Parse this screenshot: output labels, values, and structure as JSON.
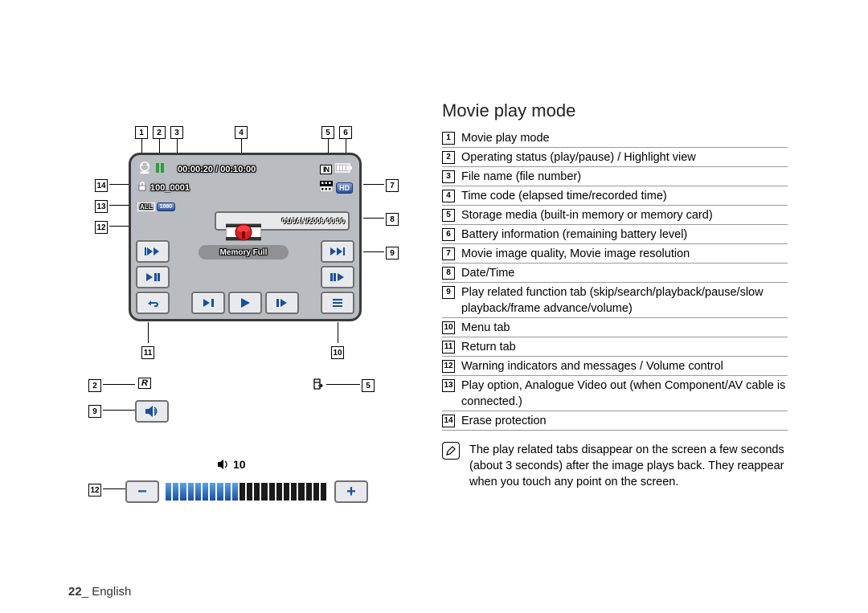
{
  "title": "Movie play mode",
  "page_footer": {
    "num": "22",
    "sep": "_ ",
    "lang": "English"
  },
  "legend": [
    {
      "n": "1",
      "t": "Movie play mode"
    },
    {
      "n": "2",
      "t": "Operating status (play/pause) / Highlight view"
    },
    {
      "n": "3",
      "t": "File name (file number)"
    },
    {
      "n": "4",
      "t": "Time code (elapsed time/recorded time)"
    },
    {
      "n": "5",
      "t": "Storage media (built-in memory or memory card)"
    },
    {
      "n": "6",
      "t": "Battery information (remaining battery level)"
    },
    {
      "n": "7",
      "t": "Movie image quality, Movie image resolution"
    },
    {
      "n": "8",
      "t": "Date/Time"
    },
    {
      "n": "9",
      "t": "Play related function tab (skip/search/playback/pause/slow playback/frame advance/volume)"
    },
    {
      "n": "10",
      "t": "Menu tab"
    },
    {
      "n": "11",
      "t": "Return tab"
    },
    {
      "n": "12",
      "t": "Warning indicators and messages / Volume control"
    },
    {
      "n": "13",
      "t": "Play option, Analogue Video out (when Component/AV cable is connected.)"
    },
    {
      "n": "14",
      "t": "Erase protection"
    }
  ],
  "note": "The play related tabs disappear on the screen a few seconds (about 3 seconds) after the image plays back. They reappear when you touch any point on the screen.",
  "lcd": {
    "timecode": "00:00:20 / 00:10:00",
    "filename": "100_0001",
    "storage": "IN",
    "date": "01/JAN/2009 00:00",
    "warning": "Memory Full",
    "hd": "HD",
    "res": "1080",
    "all": "ALL"
  },
  "volume": {
    "label": "10",
    "blue_segs": 10,
    "dark_segs": 12
  },
  "callouts_top": [
    "1",
    "2",
    "3",
    "4",
    "5",
    "6"
  ],
  "callouts_right": [
    "7",
    "8",
    "9"
  ],
  "callouts_left": [
    "14",
    "13",
    "12"
  ],
  "callouts_bottom": [
    "11",
    "10"
  ],
  "sub_callouts": {
    "l1": "2",
    "l2": "9",
    "l3": "12",
    "r1": "5"
  },
  "colors": {
    "lcd_bg": "#b9bcc1",
    "btn_bg": "#e8e9ec",
    "accent_blue": "#1a4f9c",
    "seg_blue": "#1a4f9c"
  }
}
